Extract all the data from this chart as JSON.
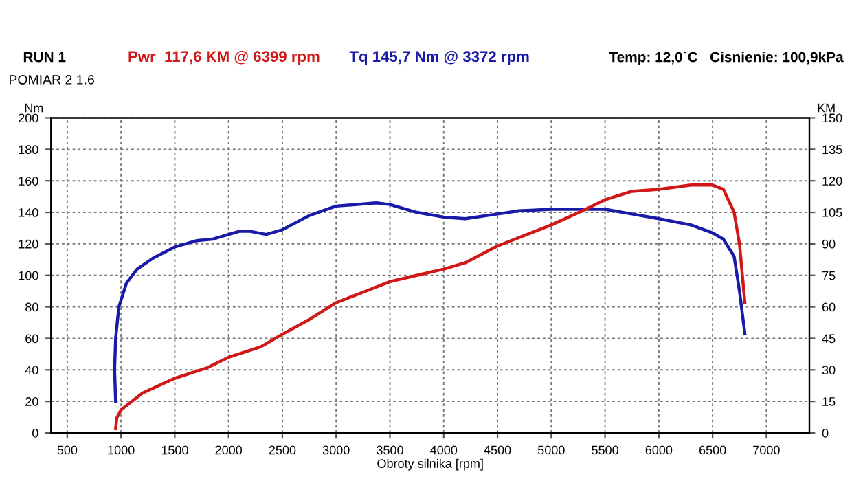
{
  "chart_data": {
    "type": "line",
    "title": "RUN 1",
    "subtitle": "POMIAR 2 1.6",
    "xlabel": "Obroty silnika [rpm]",
    "ylabel": "Nm",
    "y2label": "KM",
    "annotations": [
      "Temp: 12,0˙C   Cisnienie: 100,9kPa"
    ],
    "series": [
      {
        "name": "Pwr  117,6 KM @ 6399 rpm",
        "color": "#d01818",
        "axis": "y2",
        "x": [
          950,
          960,
          1000,
          1100,
          1200,
          1500,
          1800,
          2000,
          2300,
          2500,
          2750,
          3000,
          3250,
          3500,
          3750,
          4000,
          4200,
          4500,
          4800,
          5000,
          5300,
          5500,
          5750,
          6000,
          6300,
          6500,
          6600,
          6700,
          6750,
          6800
        ],
        "values": [
          2,
          7,
          11,
          15,
          19,
          26,
          31,
          36,
          41,
          47,
          54,
          62,
          67,
          72,
          75,
          78,
          81,
          89,
          95,
          99,
          106,
          111,
          115,
          116,
          118,
          118,
          116,
          105,
          90,
          62
        ]
      },
      {
        "name": "Tq 145,7 Nm @ 3372 rpm",
        "color": "#1a1aa8",
        "x": [
          950,
          940,
          950,
          980,
          1050,
          1150,
          1300,
          1500,
          1700,
          1850,
          2000,
          2100,
          2200,
          2350,
          2500,
          2750,
          3000,
          3372,
          3500,
          3750,
          4000,
          4200,
          4500,
          4700,
          5000,
          5500,
          5750,
          6000,
          6300,
          6500,
          6600,
          6700,
          6750,
          6800
        ],
        "values": [
          20,
          40,
          60,
          80,
          95,
          104,
          111,
          118,
          122,
          123,
          126,
          128,
          128,
          126,
          129,
          138,
          144,
          146,
          145,
          140,
          137,
          136,
          139,
          141,
          142,
          142,
          139,
          136,
          132,
          127,
          123,
          112,
          90,
          63
        ]
      }
    ],
    "xlim": [
      350,
      7400
    ],
    "xticks": [
      500,
      1000,
      1500,
      2000,
      2500,
      3000,
      3500,
      4000,
      4500,
      5000,
      5500,
      6000,
      6500,
      7000
    ],
    "ylim": [
      0,
      200
    ],
    "yticks": [
      0,
      20,
      40,
      60,
      80,
      100,
      120,
      140,
      160,
      180,
      200
    ],
    "y2lim": [
      0,
      150
    ],
    "y2ticks": [
      0,
      15,
      30,
      45,
      60,
      75,
      90,
      105,
      120,
      135,
      150
    ],
    "grid": true,
    "legend": false,
    "line_style": "solid",
    "marker": "none"
  }
}
